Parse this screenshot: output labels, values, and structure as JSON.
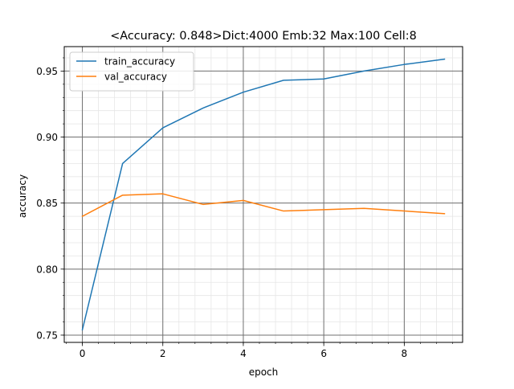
{
  "chart_data": {
    "type": "line",
    "title": "<Accuracy: 0.848>Dict:4000 Emb:32 Max:100 Cell:8",
    "xlabel": "epoch",
    "ylabel": "accuracy",
    "xlim": [
      -0.45,
      9.45
    ],
    "ylim": [
      0.7445,
      0.9685
    ],
    "xticks": [
      0,
      2,
      4,
      6,
      8
    ],
    "yticks": [
      0.75,
      0.8,
      0.85,
      0.9,
      0.95
    ],
    "xtick_labels": [
      "0",
      "2",
      "4",
      "6",
      "8"
    ],
    "ytick_labels": [
      "0.75",
      "0.80",
      "0.85",
      "0.90",
      "0.95"
    ],
    "x_minor_step": 0.4,
    "y_minor_step": 0.01,
    "grid": true,
    "legend_position": "top-left",
    "x": [
      0,
      1,
      2,
      3,
      4,
      5,
      6,
      7,
      8,
      9
    ],
    "series": [
      {
        "name": "train_accuracy",
        "color": "#1f77b4",
        "values": [
          0.754,
          0.88,
          0.907,
          0.922,
          0.934,
          0.943,
          0.944,
          0.95,
          0.955,
          0.959
        ]
      },
      {
        "name": "val_accuracy",
        "color": "#ff7f0e",
        "values": [
          0.84,
          0.856,
          0.857,
          0.849,
          0.852,
          0.844,
          0.845,
          0.846,
          0.844,
          0.842
        ]
      }
    ]
  }
}
